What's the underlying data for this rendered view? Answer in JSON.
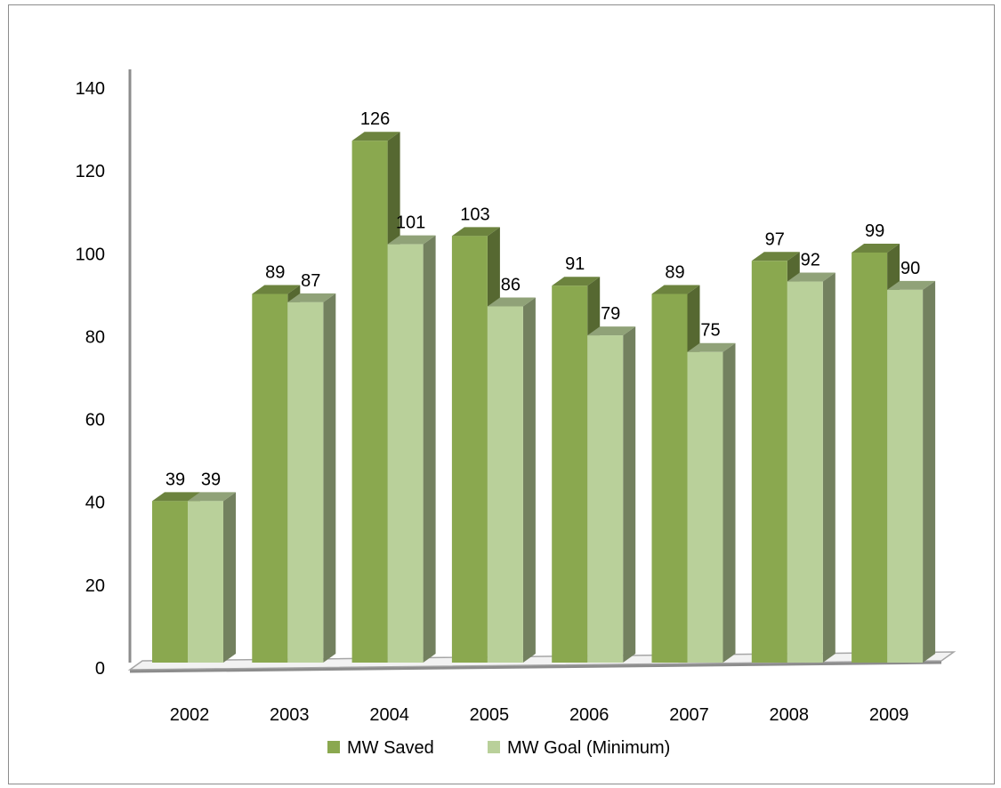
{
  "chart_data": {
    "type": "bar",
    "style": "3d-clustered-column",
    "categories": [
      "2002",
      "2003",
      "2004",
      "2005",
      "2006",
      "2007",
      "2008",
      "2009"
    ],
    "series": [
      {
        "name": "MW Saved",
        "values": [
          39,
          89,
          126,
          103,
          91,
          89,
          97,
          99
        ],
        "color": "#8aa84f"
      },
      {
        "name": "MW Goal (Minimum)",
        "values": [
          39,
          87,
          101,
          86,
          79,
          75,
          92,
          90
        ],
        "color": "#b9d09a"
      }
    ],
    "y_ticks": [
      "0",
      "20",
      "40",
      "60",
      "80",
      "100",
      "120",
      "140"
    ],
    "ylim": [
      0,
      140
    ],
    "data_labels": true,
    "legend_position": "bottom",
    "grid": false,
    "title": "",
    "xlabel": "",
    "ylabel": ""
  }
}
